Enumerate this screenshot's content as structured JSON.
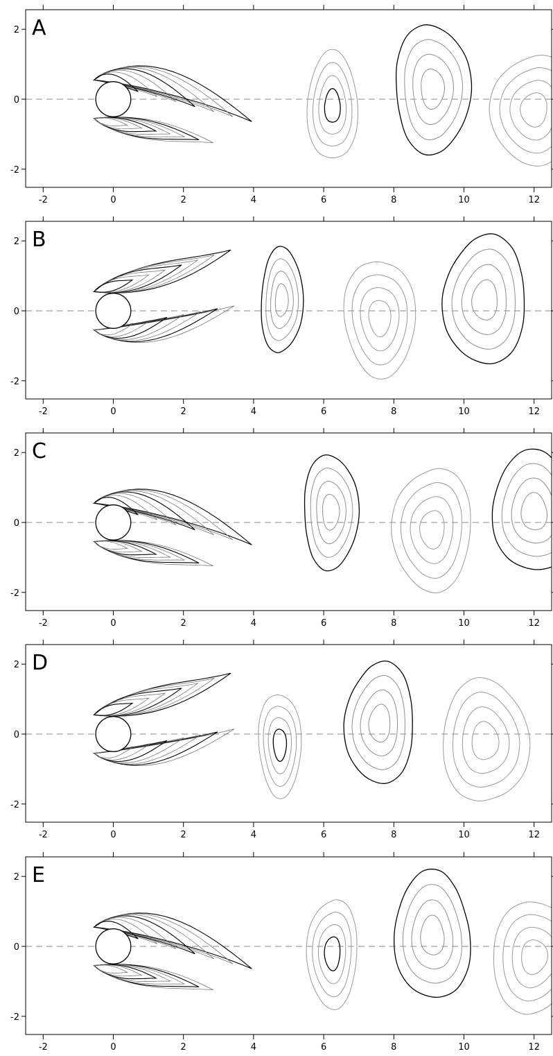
{
  "chart_data": {
    "type": "contour",
    "x_ticks": [
      "-2",
      "0",
      "2",
      "4",
      "6",
      "8",
      "10",
      "12"
    ],
    "y_ticks": [
      "2",
      "0",
      "-2"
    ],
    "xlim": [
      -2.5,
      12.5
    ],
    "ylim": [
      -2.5,
      2.5
    ],
    "cylinder": {
      "center": [
        0,
        0
      ],
      "radius": 0.5
    },
    "centerline": "dashed at y = 0",
    "contour_colors": {
      "positive": "#000000",
      "negative": "#9a9a9a"
    },
    "panels": [
      {
        "label": "A",
        "vortices": [
          {
            "x": 6.25,
            "y": -0.2,
            "sign": "negative",
            "rx": 0.7,
            "ry": 1.6
          },
          {
            "x": 9.1,
            "y": 0.3,
            "sign": "positive",
            "rx": 1.1,
            "ry": 1.8
          },
          {
            "x": 12.0,
            "y": -0.3,
            "sign": "negative",
            "rx": 1.2,
            "ry": 1.6
          }
        ]
      },
      {
        "label": "B",
        "vortices": [
          {
            "x": 4.8,
            "y": 0.3,
            "sign": "positive",
            "rx": 0.6,
            "ry": 1.5
          },
          {
            "x": 7.6,
            "y": -0.2,
            "sign": "negative",
            "rx": 1.0,
            "ry": 1.7
          },
          {
            "x": 10.6,
            "y": 0.3,
            "sign": "positive",
            "rx": 1.2,
            "ry": 1.8
          }
        ]
      },
      {
        "label": "C",
        "vortices": [
          {
            "x": 6.2,
            "y": 0.3,
            "sign": "positive",
            "rx": 0.8,
            "ry": 1.6
          },
          {
            "x": 9.1,
            "y": -0.2,
            "sign": "negative",
            "rx": 1.1,
            "ry": 1.8
          },
          {
            "x": 12.0,
            "y": 0.3,
            "sign": "positive",
            "rx": 1.2,
            "ry": 1.7
          }
        ]
      },
      {
        "label": "D",
        "vortices": [
          {
            "x": 4.75,
            "y": -0.3,
            "sign": "negative",
            "rx": 0.6,
            "ry": 1.5
          },
          {
            "x": 7.6,
            "y": 0.3,
            "sign": "positive",
            "rx": 1.0,
            "ry": 1.7
          },
          {
            "x": 10.6,
            "y": -0.2,
            "sign": "negative",
            "rx": 1.2,
            "ry": 1.8
          }
        ]
      },
      {
        "label": "E",
        "vortices": [
          {
            "x": 6.25,
            "y": -0.2,
            "sign": "negative",
            "rx": 0.7,
            "ry": 1.6
          },
          {
            "x": 9.1,
            "y": 0.3,
            "sign": "positive",
            "rx": 1.1,
            "ry": 1.8
          },
          {
            "x": 12.0,
            "y": -0.3,
            "sign": "negative",
            "rx": 1.2,
            "ry": 1.6
          }
        ]
      }
    ]
  }
}
